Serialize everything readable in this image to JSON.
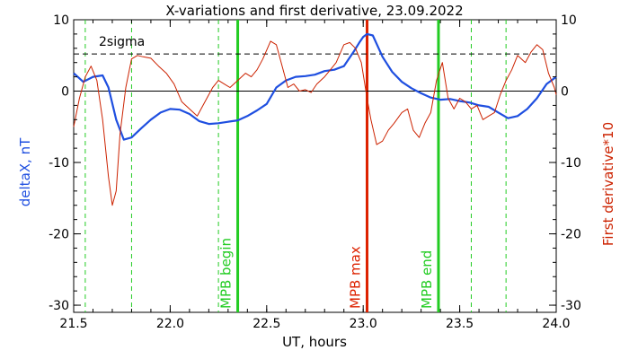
{
  "chart_data": {
    "type": "line",
    "title": "X-variations and first derivative, 23.09.2022",
    "xlabel": "UT, hours",
    "ylabel_left": "deltaX, nT",
    "ylabel_right": "First derivative*10",
    "xlim": [
      21.5,
      24.0
    ],
    "ylim": [
      -31,
      10
    ],
    "x_ticks": [
      21.5,
      22.0,
      22.5,
      23.0,
      23.5,
      24.0
    ],
    "x_tick_labels": [
      "21.5",
      "22.0",
      "22.5",
      "23.0",
      "23.5",
      "24.0"
    ],
    "y_ticks": [
      10,
      0,
      -10,
      -20,
      -30
    ],
    "y_tick_labels": [
      "10",
      "0",
      "-10",
      "-20",
      "-30"
    ],
    "threshold": {
      "label": "2sigma",
      "value": 5.2
    },
    "zero_line": 0,
    "markers": [
      {
        "name": "MPB begin",
        "x": 22.35,
        "color": "#22cc22"
      },
      {
        "name": "MPB max",
        "x": 23.02,
        "color": "#dd2200"
      },
      {
        "name": "MPB end",
        "x": 23.39,
        "color": "#22cc22"
      }
    ],
    "dashed_verticals": [
      21.56,
      21.8,
      22.25,
      23.56,
      23.74
    ],
    "series": [
      {
        "color": "#1f4fe0",
        "x": [
          21.5,
          21.55,
          21.6,
          21.65,
          21.68,
          21.72,
          21.76,
          21.8,
          21.85,
          21.9,
          21.95,
          22.0,
          22.05,
          22.1,
          22.15,
          22.2,
          22.25,
          22.3,
          22.35,
          22.4,
          22.45,
          22.5,
          22.55,
          22.6,
          22.65,
          22.7,
          22.75,
          22.8,
          22.85,
          22.9,
          22.95,
          22.98,
          23.0,
          23.02,
          23.05,
          23.08,
          23.1,
          23.15,
          23.2,
          23.25,
          23.3,
          23.35,
          23.4,
          23.45,
          23.5,
          23.55,
          23.6,
          23.65,
          23.7,
          23.75,
          23.8,
          23.85,
          23.9,
          23.95,
          24.0
        ],
        "values": [
          2.5,
          1.3,
          2.0,
          2.2,
          0.5,
          -4.0,
          -6.8,
          -6.5,
          -5.2,
          -4.0,
          -3.0,
          -2.5,
          -2.6,
          -3.2,
          -4.2,
          -4.6,
          -4.5,
          -4.3,
          -4.1,
          -3.5,
          -2.7,
          -1.8,
          0.5,
          1.5,
          2.0,
          2.1,
          2.3,
          2.8,
          3.0,
          3.5,
          5.5,
          6.8,
          7.6,
          8.0,
          7.8,
          6.0,
          4.8,
          2.7,
          1.3,
          0.4,
          -0.3,
          -0.9,
          -1.2,
          -1.1,
          -1.4,
          -1.6,
          -2.0,
          -2.2,
          -3.0,
          -3.8,
          -3.5,
          -2.5,
          -1.0,
          1.0,
          2.0
        ]
      },
      {
        "color": "#cc2200",
        "x": [
          21.5,
          21.53,
          21.56,
          21.59,
          21.62,
          21.65,
          21.68,
          21.7,
          21.72,
          21.74,
          21.77,
          21.8,
          21.83,
          21.86,
          21.9,
          21.94,
          21.98,
          22.02,
          22.06,
          22.1,
          22.14,
          22.18,
          22.22,
          22.25,
          22.28,
          22.31,
          22.35,
          22.39,
          22.42,
          22.45,
          22.48,
          22.52,
          22.55,
          22.58,
          22.61,
          22.64,
          22.67,
          22.7,
          22.73,
          22.76,
          22.8,
          22.83,
          22.86,
          22.9,
          22.93,
          22.96,
          22.99,
          23.02,
          23.04,
          23.07,
          23.1,
          23.13,
          23.16,
          23.2,
          23.23,
          23.26,
          23.29,
          23.32,
          23.35,
          23.38,
          23.41,
          23.44,
          23.47,
          23.5,
          23.53,
          23.56,
          23.59,
          23.62,
          23.65,
          23.68,
          23.71,
          23.74,
          23.77,
          23.8,
          23.84,
          23.87,
          23.9,
          23.93,
          23.96,
          23.99,
          24.0
        ],
        "values": [
          -5.0,
          -1.0,
          2.0,
          3.5,
          1.5,
          -4.0,
          -12.0,
          -16.0,
          -14.0,
          -6.0,
          0.5,
          4.5,
          5.0,
          4.8,
          4.6,
          3.5,
          2.5,
          1.0,
          -1.5,
          -2.5,
          -3.5,
          -1.5,
          0.5,
          1.5,
          1.0,
          0.5,
          1.5,
          2.5,
          2.0,
          3.0,
          4.5,
          7.0,
          6.5,
          3.5,
          0.5,
          1.0,
          0.0,
          0.2,
          -0.2,
          1.0,
          2.0,
          3.0,
          4.0,
          6.5,
          6.8,
          6.0,
          4.0,
          -1.0,
          -4.0,
          -7.5,
          -7.0,
          -5.5,
          -4.5,
          -3.0,
          -2.5,
          -5.5,
          -6.5,
          -4.5,
          -3.0,
          1.5,
          4.0,
          -1.0,
          -2.5,
          -1.0,
          -1.5,
          -2.5,
          -2.0,
          -4.0,
          -3.5,
          -3.0,
          -0.5,
          1.5,
          3.0,
          5.0,
          4.0,
          5.5,
          6.5,
          5.8,
          2.5,
          0.5,
          -0.5
        ]
      }
    ],
    "grid": false,
    "legend": "none"
  }
}
